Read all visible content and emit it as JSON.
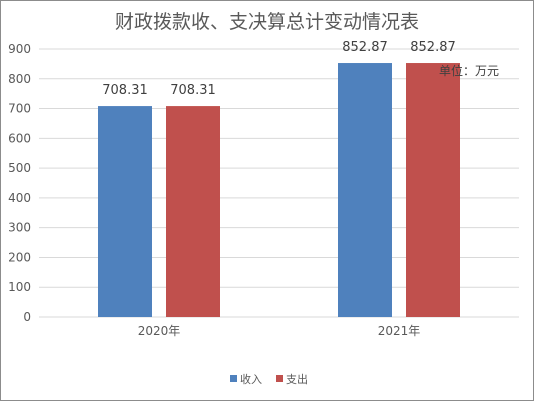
{
  "chart_data": {
    "type": "bar",
    "title": "财政拨款收、支决算总计变动情况表",
    "unit_note": "单位：万元",
    "categories": [
      "2020年",
      "2021年"
    ],
    "series": [
      {
        "name": "收入",
        "values": [
          708.31,
          852.87
        ],
        "color": "#4f81bd"
      },
      {
        "name": "支出",
        "values": [
          708.31,
          852.87
        ],
        "color": "#c0504d"
      }
    ],
    "data_labels": [
      [
        "708.31",
        "852.87"
      ],
      [
        "708.31",
        "852.87"
      ]
    ],
    "ylim": [
      0,
      900
    ],
    "yticks": [
      0,
      100,
      200,
      300,
      400,
      500,
      600,
      700,
      800,
      900
    ],
    "grid": true,
    "legend_position": "bottom"
  }
}
